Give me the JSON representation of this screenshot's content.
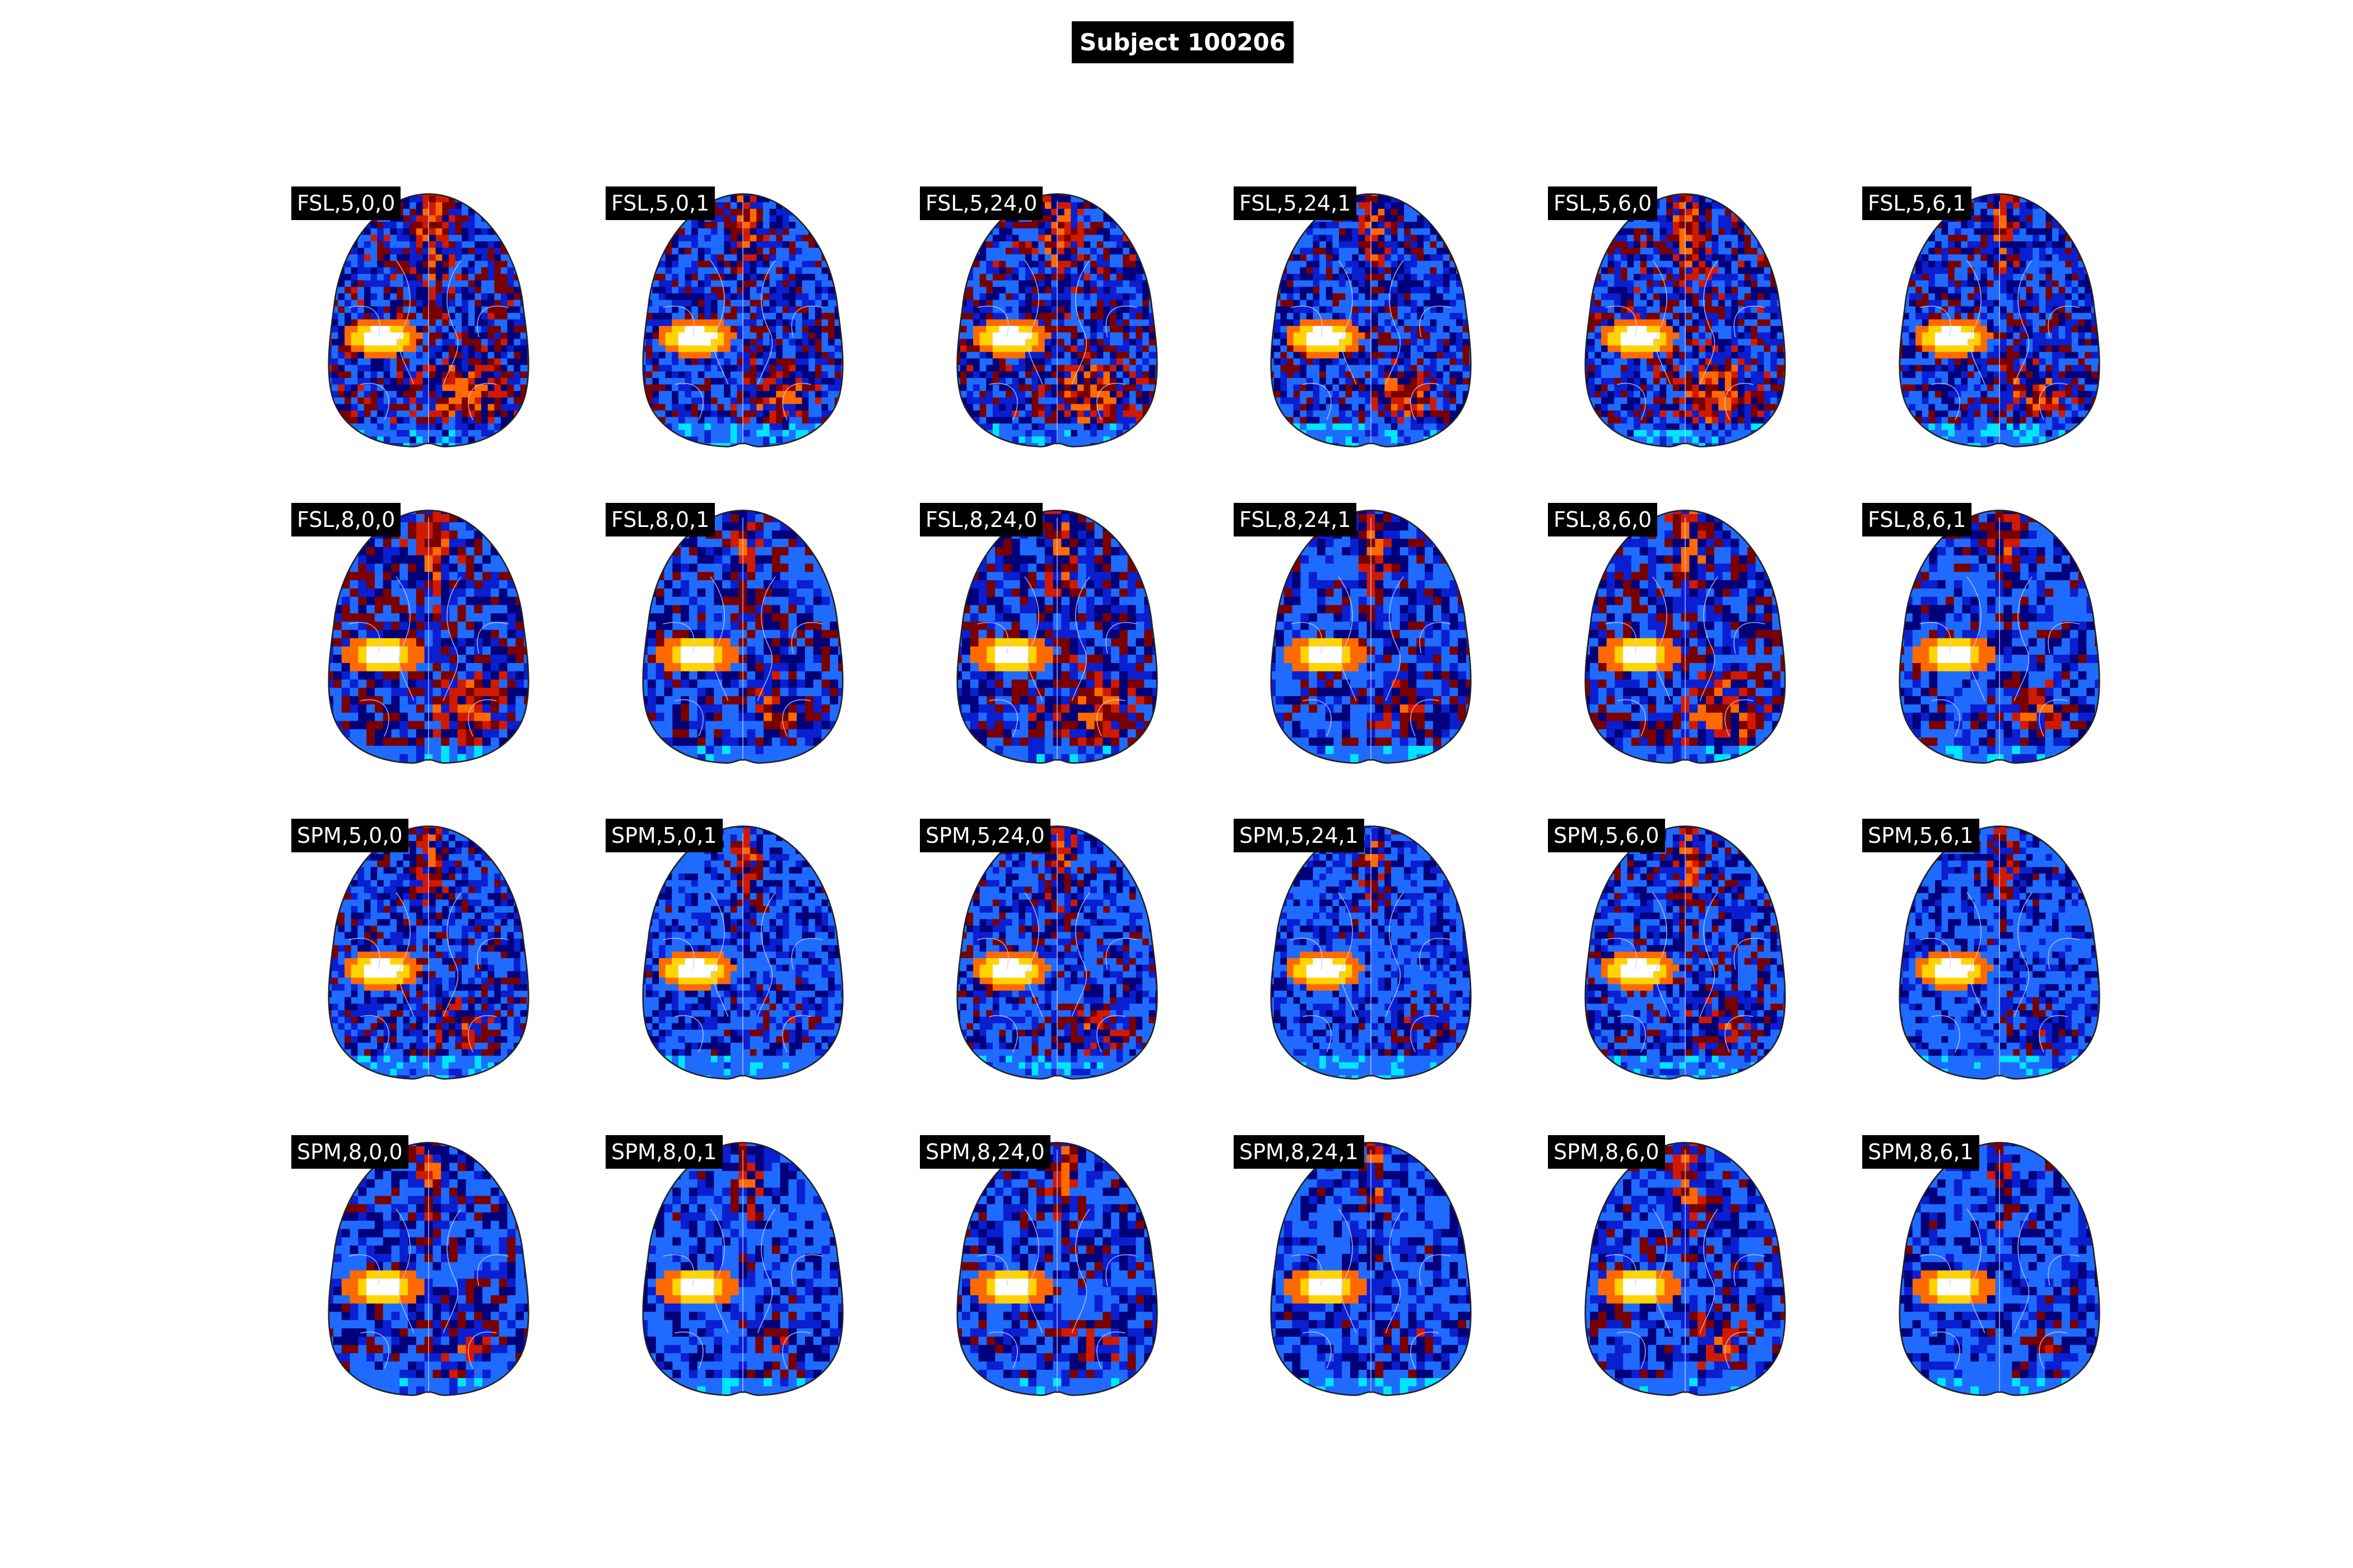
{
  "figure": {
    "title": "Subject 100206",
    "rows": [
      {
        "panels": [
          "FSL,5,0,0",
          "FSL,5,0,1",
          "FSL,5,24,0",
          "FSL,5,24,1",
          "FSL,5,6,0",
          "FSL,5,6,1"
        ]
      },
      {
        "panels": [
          "FSL,8,0,0",
          "FSL,8,0,1",
          "FSL,8,24,0",
          "FSL,8,24,1",
          "FSL,8,6,0",
          "FSL,8,6,1"
        ]
      },
      {
        "panels": [
          "SPM,5,0,0",
          "SPM,5,0,1",
          "SPM,5,24,0",
          "SPM,5,24,1",
          "SPM,5,6,0",
          "SPM,5,6,1"
        ]
      },
      {
        "panels": [
          "SPM,8,0,0",
          "SPM,8,0,1",
          "SPM,8,24,0",
          "SPM,8,24,1",
          "SPM,8,6,0",
          "SPM,8,6,1"
        ]
      }
    ],
    "colormap": [
      "#00e5ff",
      "#1f6bff",
      "#0a1fd0",
      "#00007a",
      "#7a0000",
      "#d01a00",
      "#ff6a00",
      "#ffd400",
      "#ffffff"
    ],
    "outline_color": "#222222",
    "contour_color": "#c9c9ff"
  }
}
